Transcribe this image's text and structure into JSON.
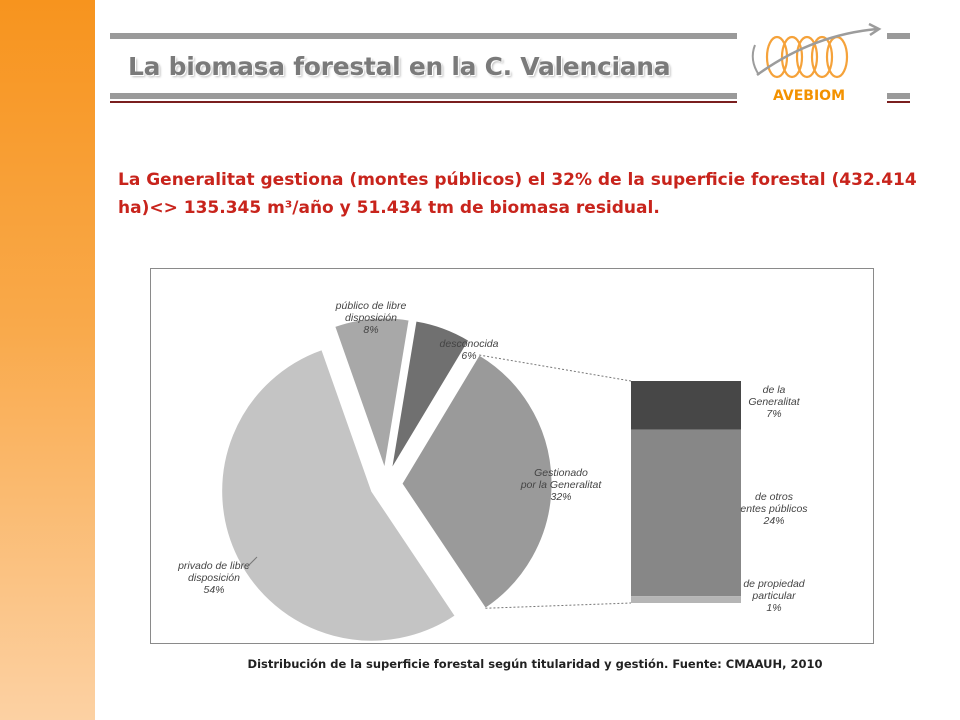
{
  "slide": {
    "title": "La biomasa forestal en la C. Valenciana",
    "intro": "La Generalitat gestiona (montes públicos) el 32% de la superficie forestal (432.414 ha)<> 135.345 m³/año y 51.434 tm de biomasa residual.",
    "caption": "Distribución de la superficie forestal según titularidad y gestión. Fuente: CMAAUH, 2010",
    "logo_text": "AVEBIOM",
    "colors": {
      "sidebar": "#f7941e",
      "title_text": "#7a7a7a",
      "intro_text": "#c8241c",
      "logo_text": "#f39200",
      "rule_red": "#7a1f1f"
    }
  },
  "chart_data": [
    {
      "type": "pie",
      "slices": [
        {
          "label": "Gestionado por la Generalitat",
          "value": 32,
          "color": "#9a9a9a",
          "exploded": true
        },
        {
          "label": "privado de libre disposición",
          "value": 54,
          "color": "#c4c4c4",
          "exploded": true
        },
        {
          "label": "público de libre disposición",
          "value": 8,
          "color": "#a8a8a8",
          "exploded": true
        },
        {
          "label": "desconocida",
          "value": 6,
          "color": "#707070",
          "exploded": true
        }
      ],
      "labels": [
        {
          "lines": [
            "Gestionado",
            "por la Generalitat",
            "32%"
          ]
        },
        {
          "lines": [
            "privado de libre",
            "disposición",
            "54%"
          ]
        },
        {
          "lines": [
            "público  de libre",
            "disposición",
            "8%"
          ]
        },
        {
          "lines": [
            "desconocida",
            "6%"
          ]
        }
      ]
    },
    {
      "type": "bar",
      "stacked": true,
      "total": 32,
      "segments": [
        {
          "label": "de la Generalitat",
          "value": 7,
          "color": "#474747",
          "lines": [
            "de la",
            "Generalitat",
            "7%"
          ]
        },
        {
          "label": "de otros entes públicos",
          "value": 24,
          "color": "#878787",
          "lines": [
            "de otros",
            "entes públicos",
            "24%"
          ]
        },
        {
          "label": "de propiedad particular",
          "value": 1,
          "color": "#b5b5b5",
          "lines": [
            "de propiedad",
            "particular",
            "1%"
          ]
        }
      ]
    }
  ]
}
